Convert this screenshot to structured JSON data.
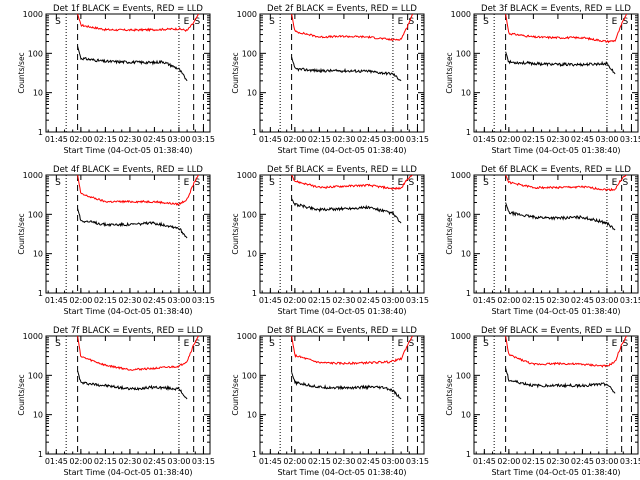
{
  "chart_data": {
    "type": "line",
    "xlabel": "Start Time (04-Oct-05 01:38:40)",
    "ylabel": "Counts/sec",
    "yscale": "log",
    "ylim": [
      1,
      1000
    ],
    "yticks": [
      1,
      10,
      100,
      1000
    ],
    "xlim": [
      "01:38:40",
      "03:19:00"
    ],
    "xticks": [
      "01:45",
      "02:00",
      "02:15",
      "02:30",
      "02:45",
      "03:00",
      "03:15"
    ],
    "region_markers": [
      "S",
      "E",
      "S"
    ],
    "series_colors": {
      "events": "#000000",
      "lld": "#ff0000"
    },
    "panels": [
      {
        "title": "Det 1f BLACK = Events, RED = LLD",
        "dotted": [
          "01:51",
          "03:00"
        ],
        "dashed": [
          "01:58",
          "03:09",
          "03:15"
        ],
        "events": [
          [
            "01:58",
            150
          ],
          [
            "02:00",
            75
          ],
          [
            "02:15",
            62
          ],
          [
            "02:30",
            60
          ],
          [
            "02:45",
            58
          ],
          [
            "02:50",
            62
          ],
          [
            "03:00",
            40
          ],
          [
            "03:05",
            20
          ]
        ],
        "lld": [
          [
            "01:58",
            1000
          ],
          [
            "02:00",
            520
          ],
          [
            "02:15",
            400
          ],
          [
            "02:30",
            390
          ],
          [
            "02:45",
            400
          ],
          [
            "03:00",
            420
          ],
          [
            "03:05",
            380
          ],
          [
            "03:09",
            600
          ],
          [
            "03:12",
            1000
          ]
        ]
      },
      {
        "title": "Det 2f BLACK = Events, RED = LLD",
        "dotted": [
          "01:51",
          "03:00"
        ],
        "dashed": [
          "01:58",
          "03:09",
          "03:15"
        ],
        "events": [
          [
            "01:58",
            80
          ],
          [
            "02:00",
            40
          ],
          [
            "02:15",
            36
          ],
          [
            "02:30",
            36
          ],
          [
            "02:45",
            35
          ],
          [
            "02:50",
            33
          ],
          [
            "03:00",
            30
          ],
          [
            "03:05",
            20
          ]
        ],
        "lld": [
          [
            "01:58",
            1000
          ],
          [
            "02:00",
            360
          ],
          [
            "02:15",
            260
          ],
          [
            "02:30",
            270
          ],
          [
            "02:45",
            260
          ],
          [
            "03:00",
            220
          ],
          [
            "03:05",
            230
          ],
          [
            "03:09",
            500
          ],
          [
            "03:12",
            1000
          ]
        ]
      },
      {
        "title": "Det 3f BLACK = Events, RED = LLD",
        "dotted": [
          "01:51",
          "03:00"
        ],
        "dashed": [
          "01:58",
          "03:09",
          "03:15"
        ],
        "events": [
          [
            "01:58",
            110
          ],
          [
            "02:00",
            60
          ],
          [
            "02:15",
            55
          ],
          [
            "02:30",
            52
          ],
          [
            "02:45",
            52
          ],
          [
            "03:00",
            55
          ],
          [
            "03:05",
            30
          ]
        ],
        "lld": [
          [
            "01:58",
            1000
          ],
          [
            "02:00",
            320
          ],
          [
            "02:15",
            260
          ],
          [
            "02:30",
            250
          ],
          [
            "02:45",
            250
          ],
          [
            "03:00",
            200
          ],
          [
            "03:05",
            210
          ],
          [
            "03:09",
            550
          ],
          [
            "03:12",
            1000
          ]
        ]
      },
      {
        "title": "Det 4f BLACK = Events, RED = LLD",
        "dotted": [
          "01:51",
          "03:00"
        ],
        "dashed": [
          "01:58",
          "03:09",
          "03:15"
        ],
        "events": [
          [
            "01:58",
            140
          ],
          [
            "02:00",
            70
          ],
          [
            "02:15",
            55
          ],
          [
            "02:30",
            55
          ],
          [
            "02:45",
            60
          ],
          [
            "02:55",
            50
          ],
          [
            "03:00",
            45
          ],
          [
            "03:05",
            25
          ]
        ],
        "lld": [
          [
            "01:58",
            1000
          ],
          [
            "02:00",
            330
          ],
          [
            "02:15",
            210
          ],
          [
            "02:30",
            210
          ],
          [
            "02:45",
            210
          ],
          [
            "03:00",
            180
          ],
          [
            "03:05",
            240
          ],
          [
            "03:09",
            600
          ],
          [
            "03:12",
            1000
          ]
        ]
      },
      {
        "title": "Det 5f BLACK = Events, RED = LLD",
        "dotted": [
          "01:51",
          "03:00"
        ],
        "dashed": [
          "01:58",
          "03:09",
          "03:15"
        ],
        "events": [
          [
            "01:58",
            250
          ],
          [
            "02:00",
            180
          ],
          [
            "02:15",
            130
          ],
          [
            "02:30",
            140
          ],
          [
            "02:45",
            150
          ],
          [
            "03:00",
            105
          ],
          [
            "03:05",
            60
          ]
        ],
        "lld": [
          [
            "01:58",
            1000
          ],
          [
            "02:00",
            700
          ],
          [
            "02:15",
            480
          ],
          [
            "02:30",
            520
          ],
          [
            "02:45",
            550
          ],
          [
            "03:00",
            450
          ],
          [
            "03:05",
            460
          ],
          [
            "03:09",
            800
          ],
          [
            "03:12",
            1000
          ]
        ]
      },
      {
        "title": "Det 6f BLACK = Events, RED = LLD",
        "dotted": [
          "01:51",
          "03:00"
        ],
        "dashed": [
          "01:58",
          "03:09",
          "03:15"
        ],
        "events": [
          [
            "01:58",
            200
          ],
          [
            "02:00",
            110
          ],
          [
            "02:15",
            85
          ],
          [
            "02:30",
            80
          ],
          [
            "02:45",
            85
          ],
          [
            "03:00",
            60
          ],
          [
            "03:05",
            40
          ]
        ],
        "lld": [
          [
            "01:58",
            1000
          ],
          [
            "02:00",
            650
          ],
          [
            "02:15",
            480
          ],
          [
            "02:30",
            480
          ],
          [
            "02:45",
            500
          ],
          [
            "03:00",
            420
          ],
          [
            "03:05",
            430
          ],
          [
            "03:09",
            800
          ],
          [
            "03:12",
            1000
          ]
        ]
      },
      {
        "title": "Det 7f BLACK = Events, RED = LLD",
        "dotted": [
          "01:51",
          "03:00"
        ],
        "dashed": [
          "01:58",
          "03:09",
          "03:15"
        ],
        "events": [
          [
            "01:58",
            130
          ],
          [
            "02:00",
            65
          ],
          [
            "02:15",
            55
          ],
          [
            "02:30",
            45
          ],
          [
            "02:45",
            50
          ],
          [
            "03:00",
            45
          ],
          [
            "03:05",
            25
          ]
        ],
        "lld": [
          [
            "01:58",
            1000
          ],
          [
            "02:00",
            300
          ],
          [
            "02:15",
            180
          ],
          [
            "02:30",
            140
          ],
          [
            "02:45",
            150
          ],
          [
            "03:00",
            170
          ],
          [
            "03:05",
            230
          ],
          [
            "03:09",
            600
          ],
          [
            "03:12",
            1000
          ]
        ]
      },
      {
        "title": "Det 8f BLACK = Events, RED = LLD",
        "dotted": [
          "01:51",
          "03:00"
        ],
        "dashed": [
          "01:58",
          "03:09",
          "03:15"
        ],
        "events": [
          [
            "01:58",
            120
          ],
          [
            "02:00",
            65
          ],
          [
            "02:15",
            50
          ],
          [
            "02:30",
            48
          ],
          [
            "02:45",
            50
          ],
          [
            "02:55",
            48
          ],
          [
            "03:00",
            40
          ],
          [
            "03:05",
            25
          ]
        ],
        "lld": [
          [
            "01:58",
            1000
          ],
          [
            "02:00",
            320
          ],
          [
            "02:15",
            210
          ],
          [
            "02:30",
            200
          ],
          [
            "02:45",
            210
          ],
          [
            "02:58",
            220
          ],
          [
            "03:05",
            260
          ],
          [
            "03:09",
            600
          ],
          [
            "03:12",
            1000
          ]
        ]
      },
      {
        "title": "Det 9f BLACK = Events, RED = LLD",
        "dotted": [
          "01:51",
          "03:00"
        ],
        "dashed": [
          "01:58",
          "03:09",
          "03:15"
        ],
        "events": [
          [
            "01:58",
            150
          ],
          [
            "02:00",
            75
          ],
          [
            "02:15",
            55
          ],
          [
            "02:30",
            55
          ],
          [
            "02:45",
            55
          ],
          [
            "03:00",
            60
          ],
          [
            "03:05",
            35
          ]
        ],
        "lld": [
          [
            "01:58",
            1000
          ],
          [
            "02:00",
            330
          ],
          [
            "02:15",
            190
          ],
          [
            "02:30",
            200
          ],
          [
            "02:45",
            190
          ],
          [
            "03:00",
            170
          ],
          [
            "03:05",
            220
          ],
          [
            "03:09",
            600
          ],
          [
            "03:12",
            1000
          ]
        ]
      }
    ]
  }
}
